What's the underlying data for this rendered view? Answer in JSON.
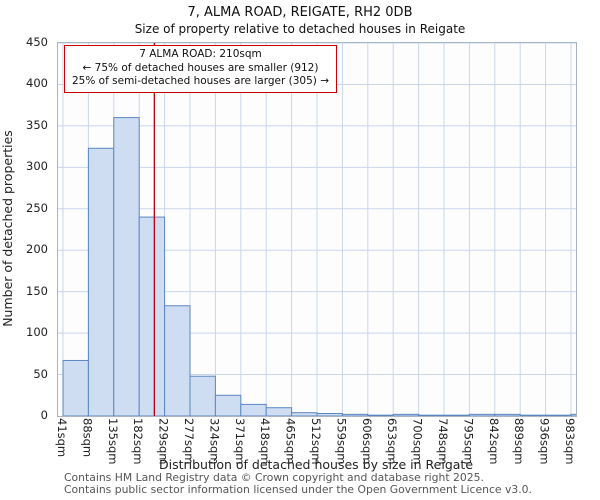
{
  "chart_data": {
    "type": "bar",
    "title": "7, ALMA ROAD, REIGATE, RH2 0DB",
    "subtitle": "Size of property relative to detached houses in Reigate",
    "xlabel": "Distribution of detached houses by size in Reigate",
    "ylabel": "Number of detached properties",
    "categories": [
      "41sqm",
      "88sqm",
      "135sqm",
      "182sqm",
      "229sqm",
      "277sqm",
      "324sqm",
      "371sqm",
      "418sqm",
      "465sqm",
      "512sqm",
      "559sqm",
      "606sqm",
      "653sqm",
      "700sqm",
      "748sqm",
      "795sqm",
      "842sqm",
      "889sqm",
      "936sqm",
      "983sqm"
    ],
    "values": [
      67,
      323,
      360,
      240,
      133,
      48,
      25,
      14,
      10,
      4,
      3,
      2,
      1,
      2,
      1,
      1,
      2,
      2,
      1,
      1,
      2
    ],
    "ylim": [
      0,
      450
    ],
    "yticks": [
      0,
      50,
      100,
      150,
      200,
      250,
      300,
      350,
      400,
      450
    ],
    "grid": true,
    "legend": "none",
    "bar_fill": "#cfddf2",
    "bar_stroke": "#5b87c0",
    "grid_color": "#c9d6ec",
    "marker": {
      "value": 210,
      "unit": "sqm",
      "color": "#bb0000"
    }
  },
  "annotation": {
    "line1": "7 ALMA ROAD: 210sqm",
    "line2": "← 75% of detached houses are smaller (912)",
    "line3": "25% of semi-detached houses are larger (305) →"
  },
  "footer": {
    "line1": "Contains HM Land Registry data © Crown copyright and database right 2025.",
    "line2": "Contains public sector information licensed under the Open Government Licence v3.0."
  }
}
